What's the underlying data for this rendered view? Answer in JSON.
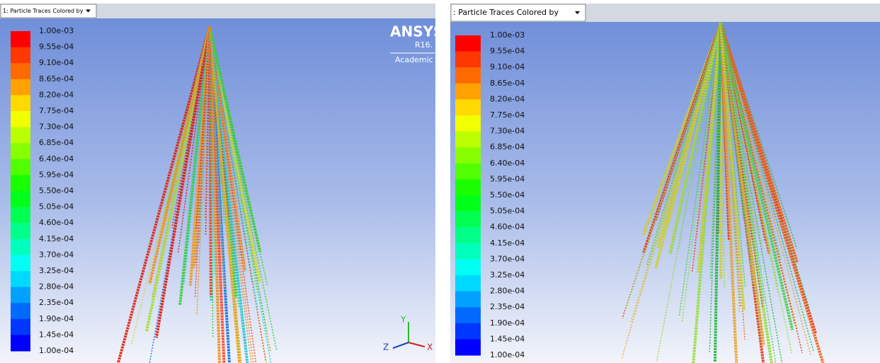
{
  "panels": [
    {
      "dropdown": "1: Particle Traces Colored by",
      "legend": {
        "labels": [
          "1.00e-03",
          "9.55e-04",
          "9.10e-04",
          "8.65e-04",
          "8.20e-04",
          "7.75e-04",
          "7.30e-04",
          "6.85e-04",
          "6.40e-04",
          "5.95e-04",
          "5.50e-04",
          "5.05e-04",
          "4.60e-04",
          "4.15e-04",
          "3.70e-04",
          "3.25e-04",
          "2.80e-04",
          "2.35e-04",
          "1.90e-04",
          "1.45e-04",
          "1.00e-04"
        ]
      },
      "logo": {
        "brand": "ANSYS",
        "release": "R16.",
        "edition": "Academic"
      },
      "triad": {
        "y": "Y",
        "z": "Z",
        "x": "X"
      }
    },
    {
      "dropdown": ": Particle Traces Colored by",
      "legend": {
        "labels": [
          "1.00e-03",
          "9.55e-04",
          "9.10e-04",
          "8.65e-04",
          "8.20e-04",
          "7.75e-04",
          "7.30e-04",
          "6.85e-04",
          "6.40e-04",
          "5.95e-04",
          "5.50e-04",
          "5.05e-04",
          "4.60e-04",
          "4.15e-04",
          "3.70e-04",
          "3.25e-04",
          "2.80e-04",
          "2.35e-04",
          "1.90e-04",
          "1.45e-04",
          "1.00e-04"
        ]
      }
    }
  ]
}
